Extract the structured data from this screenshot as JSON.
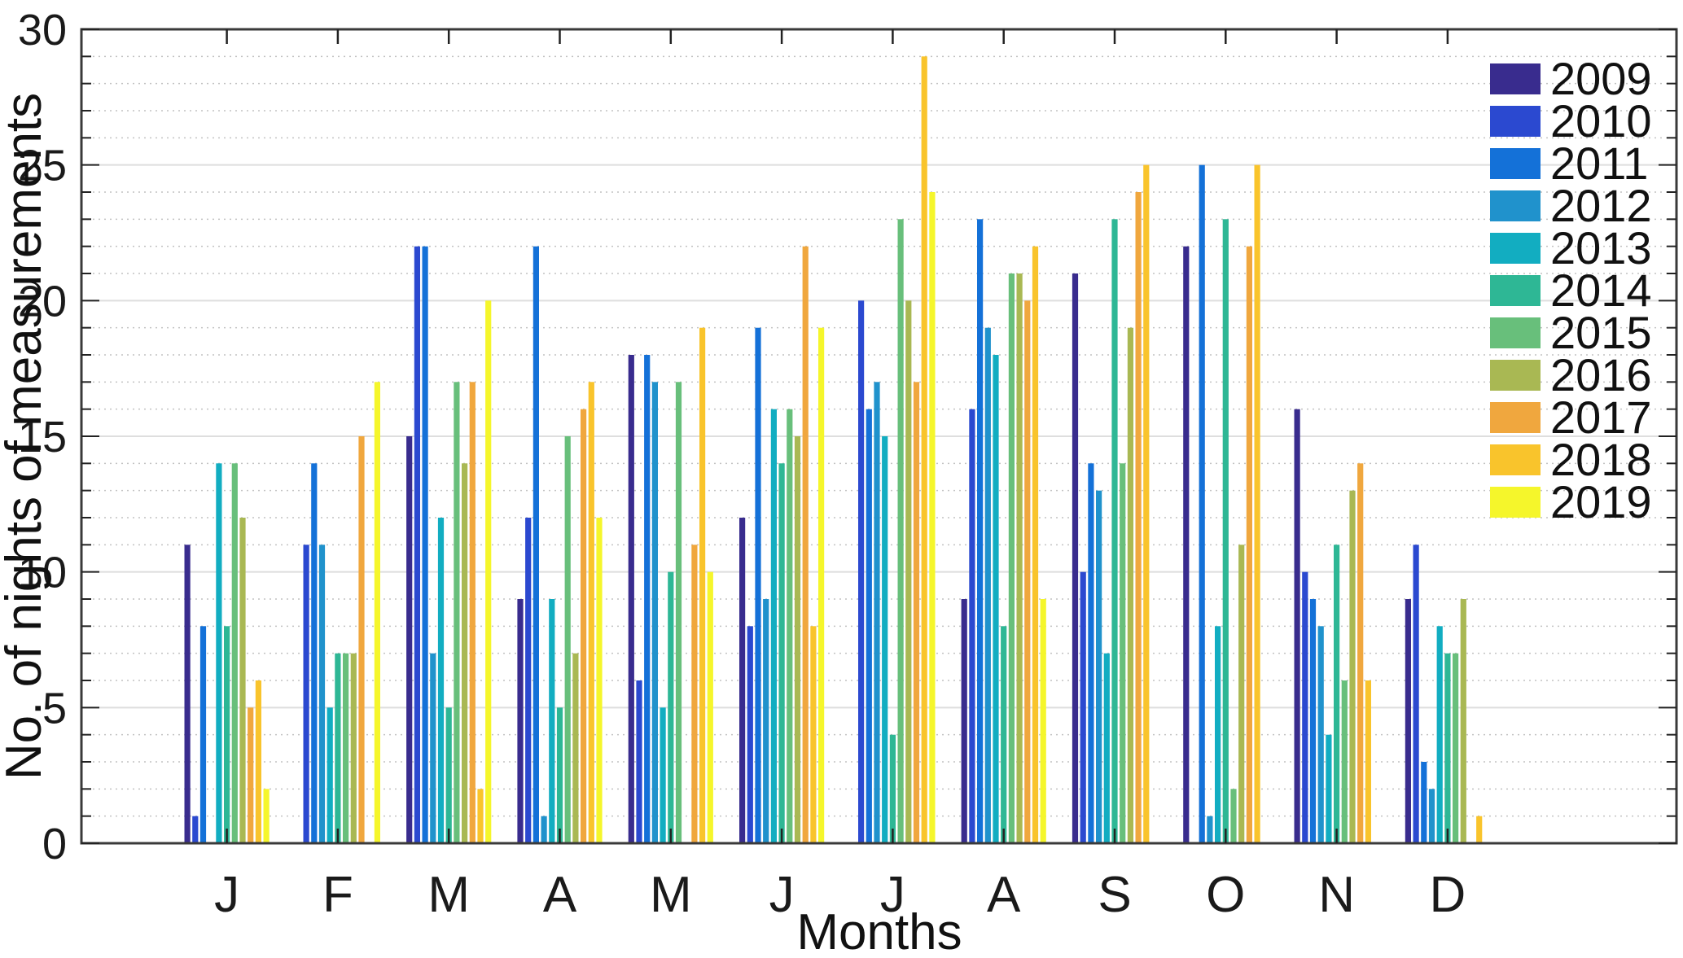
{
  "chart_data": {
    "type": "bar",
    "title": "",
    "xlabel": "Months",
    "ylabel": "No. of nights of measurements",
    "categories": [
      "J",
      "F",
      "M",
      "A",
      "M",
      "J",
      "J",
      "A",
      "S",
      "O",
      "N",
      "D"
    ],
    "ylim": [
      0,
      30
    ],
    "yticks": [
      0,
      5,
      10,
      15,
      20,
      25,
      30
    ],
    "grid": "horizontal: dotted minor every 1 unit, solid light major every 5 units",
    "legend_position": "top-right inside plot, no border",
    "bar_layout": "grouped, 11 series per month, missing value = no bar",
    "series": [
      {
        "name": "2009",
        "color": "#392c8e",
        "values": [
          11,
          0,
          15,
          9,
          18,
          12,
          0,
          9,
          21,
          22,
          16,
          9
        ]
      },
      {
        "name": "2010",
        "color": "#2b49d0",
        "values": [
          1,
          11,
          22,
          12,
          6,
          8,
          20,
          16,
          10,
          0,
          10,
          11
        ]
      },
      {
        "name": "2011",
        "color": "#1471d8",
        "values": [
          8,
          14,
          22,
          22,
          18,
          19,
          16,
          23,
          14,
          25,
          9,
          3
        ]
      },
      {
        "name": "2012",
        "color": "#2092cc",
        "values": [
          0,
          11,
          7,
          1,
          17,
          9,
          17,
          19,
          13,
          1,
          8,
          2
        ]
      },
      {
        "name": "2013",
        "color": "#12adc1",
        "values": [
          14,
          5,
          12,
          9,
          5,
          16,
          15,
          18,
          7,
          8,
          4,
          8
        ]
      },
      {
        "name": "2014",
        "color": "#2eb795",
        "values": [
          8,
          7,
          5,
          5,
          10,
          14,
          4,
          8,
          23,
          23,
          11,
          7
        ]
      },
      {
        "name": "2015",
        "color": "#68bf7b",
        "values": [
          14,
          7,
          17,
          15,
          17,
          16,
          23,
          21,
          14,
          2,
          6,
          7
        ]
      },
      {
        "name": "2016",
        "color": "#a9b853",
        "values": [
          12,
          7,
          14,
          7,
          0,
          15,
          20,
          21,
          19,
          11,
          13,
          9
        ]
      },
      {
        "name": "2017",
        "color": "#f0a73e",
        "values": [
          5,
          15,
          17,
          16,
          11,
          22,
          17,
          20,
          24,
          22,
          14,
          0
        ]
      },
      {
        "name": "2018",
        "color": "#f9c42c",
        "values": [
          6,
          0,
          2,
          17,
          19,
          8,
          29,
          22,
          25,
          25,
          6,
          1
        ]
      },
      {
        "name": "2019",
        "color": "#f5f62b",
        "values": [
          2,
          17,
          20,
          12,
          10,
          19,
          24,
          9,
          0,
          0,
          0,
          0
        ]
      }
    ]
  },
  "style_colors": {
    "axis_box": "#3a3a3a",
    "tick": "#222222",
    "tick_label": "#1a1a1a",
    "grid_major": "#dedede",
    "grid_minor": "#c2c2c2",
    "legend_text": "#111111"
  }
}
